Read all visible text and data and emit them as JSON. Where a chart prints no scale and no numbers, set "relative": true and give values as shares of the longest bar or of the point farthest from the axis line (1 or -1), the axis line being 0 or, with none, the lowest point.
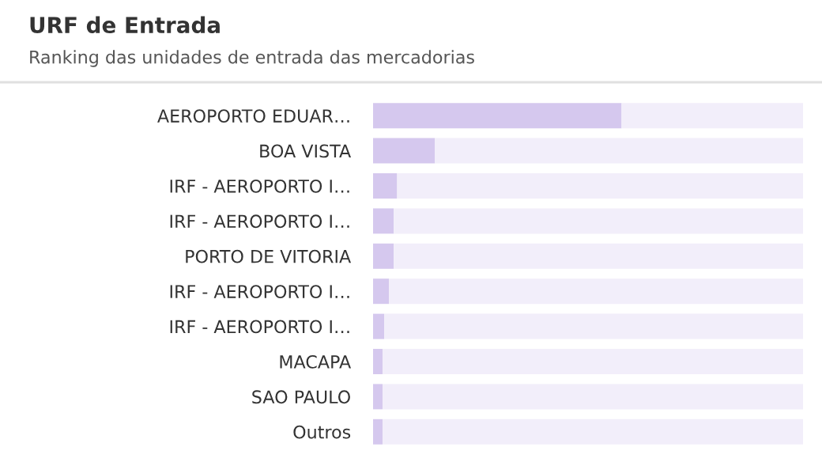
{
  "chart_data": {
    "type": "bar",
    "orientation": "horizontal",
    "stacked": true,
    "relative": true,
    "title": "URF de Entrada",
    "subtitle": "Ranking das unidades de entrada das mercadorias",
    "categories": [
      "AEROPORTO EDUAR…",
      "BOA VISTA",
      "IRF - AEROPORTO I…",
      "IRF - AEROPORTO I…",
      "PORTO DE VITORIA",
      "IRF - AEROPORTO I…",
      "IRF - AEROPORTO I…",
      "MACAPA",
      "SAO PAULO",
      "Outros"
    ],
    "series": [
      {
        "color": "#d5c8ee",
        "values": [
          0.578,
          0.144,
          0.056,
          0.048,
          0.048,
          0.037,
          0.026,
          0.022,
          0.022,
          0.022
        ]
      },
      {
        "color": "#f2eefa",
        "values": [
          0.422,
          0.856,
          0.944,
          0.952,
          0.952,
          0.963,
          0.974,
          0.978,
          0.978,
          0.978
        ]
      }
    ],
    "grid": false,
    "legend": false
  }
}
